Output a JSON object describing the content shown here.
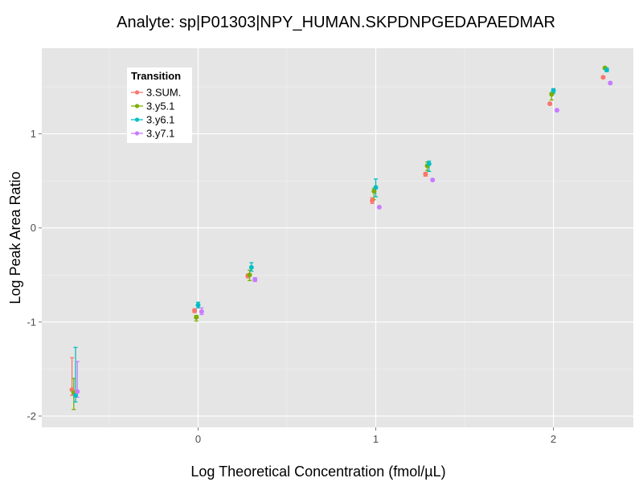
{
  "chart_data": {
    "type": "scatter",
    "title": "Analyte: sp|P01303|NPY_HUMAN.SKPDNPGEDAPAEDMAR",
    "xlabel": "Log Theoretical Concentration (fmol/µL)",
    "ylabel": "Log Peak Area Ratio",
    "xlim": [
      -0.88,
      2.45
    ],
    "ylim": [
      -2.12,
      1.91
    ],
    "x_ticks": [
      0,
      1,
      2
    ],
    "x_tick_labels": [
      "0",
      "1",
      "2"
    ],
    "y_ticks": [
      -2,
      -1,
      0,
      1
    ],
    "y_tick_labels": [
      "-2",
      "-1",
      "0",
      "1"
    ],
    "grid": true,
    "legend": {
      "title": "Transition",
      "placement": "top-left"
    },
    "series": [
      {
        "name": "3.SUM.",
        "color": "#F8766D",
        "points": [
          {
            "x": -0.71,
            "y": -1.72,
            "lo": -1.78,
            "hi": -1.38
          },
          {
            "x": -0.02,
            "y": -0.88,
            "lo": -0.9,
            "hi": -0.86
          },
          {
            "x": 0.28,
            "y": -0.51,
            "lo": -0.53,
            "hi": -0.49
          },
          {
            "x": 0.98,
            "y": 0.29,
            "lo": 0.26,
            "hi": 0.32
          },
          {
            "x": 1.28,
            "y": 0.57,
            "lo": 0.55,
            "hi": 0.59
          },
          {
            "x": 1.98,
            "y": 1.32,
            "lo": 1.31,
            "hi": 1.33
          },
          {
            "x": 2.28,
            "y": 1.6,
            "lo": 1.59,
            "hi": 1.61
          }
        ]
      },
      {
        "name": "3.y5.1",
        "color": "#7CAE00",
        "points": [
          {
            "x": -0.7,
            "y": -1.75,
            "lo": -1.93,
            "hi": -1.6
          },
          {
            "x": -0.01,
            "y": -0.95,
            "lo": -0.99,
            "hi": -0.93
          },
          {
            "x": 0.29,
            "y": -0.5,
            "lo": -0.56,
            "hi": -0.45
          },
          {
            "x": 0.99,
            "y": 0.39,
            "lo": 0.3,
            "hi": 0.42
          },
          {
            "x": 1.29,
            "y": 0.66,
            "lo": 0.61,
            "hi": 0.7
          },
          {
            "x": 1.99,
            "y": 1.42,
            "lo": 1.36,
            "hi": 1.44
          },
          {
            "x": 2.29,
            "y": 1.7,
            "lo": 1.69,
            "hi": 1.71
          }
        ]
      },
      {
        "name": "3.y6.1",
        "color": "#00BFC4",
        "points": [
          {
            "x": -0.69,
            "y": -1.78,
            "lo": -1.85,
            "hi": -1.27
          },
          {
            "x": 0.0,
            "y": -0.82,
            "lo": -0.85,
            "hi": -0.79
          },
          {
            "x": 0.3,
            "y": -0.42,
            "lo": -0.46,
            "hi": -0.37
          },
          {
            "x": 1.0,
            "y": 0.43,
            "lo": 0.33,
            "hi": 0.52
          },
          {
            "x": 1.3,
            "y": 0.68,
            "lo": 0.6,
            "hi": 0.71
          },
          {
            "x": 2.0,
            "y": 1.46,
            "lo": 1.43,
            "hi": 1.48
          },
          {
            "x": 2.3,
            "y": 1.68,
            "lo": 1.66,
            "hi": 1.7
          }
        ]
      },
      {
        "name": "3.y7.1",
        "color": "#C77CFF",
        "points": [
          {
            "x": -0.68,
            "y": -1.74,
            "lo": -1.8,
            "hi": -1.42
          },
          {
            "x": 0.02,
            "y": -0.89,
            "lo": -0.92,
            "hi": -0.85
          },
          {
            "x": 0.32,
            "y": -0.55,
            "lo": -0.57,
            "hi": -0.53
          },
          {
            "x": 1.02,
            "y": 0.22,
            "lo": 0.21,
            "hi": 0.23
          },
          {
            "x": 1.32,
            "y": 0.51,
            "lo": 0.5,
            "hi": 0.52
          },
          {
            "x": 2.02,
            "y": 1.25,
            "lo": 1.24,
            "hi": 1.26
          },
          {
            "x": 2.32,
            "y": 1.54,
            "lo": 1.53,
            "hi": 1.55
          }
        ]
      }
    ]
  }
}
